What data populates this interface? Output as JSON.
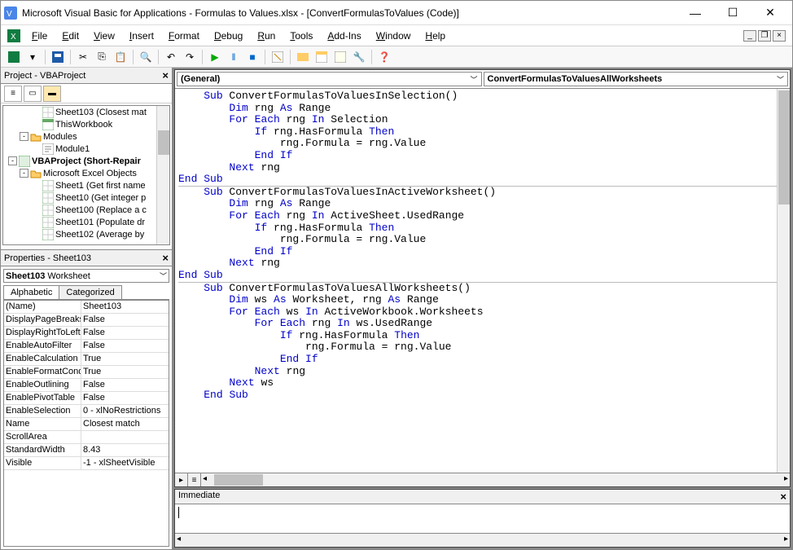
{
  "window": {
    "title": "Microsoft Visual Basic for Applications - Formulas to Values.xlsx - [ConvertFormulasToValues (Code)]"
  },
  "menubar": {
    "items": [
      "File",
      "Edit",
      "View",
      "Insert",
      "Format",
      "Debug",
      "Run",
      "Tools",
      "Add-Ins",
      "Window",
      "Help"
    ]
  },
  "project_panel": {
    "title": "Project - VBAProject",
    "tree": [
      {
        "indent": 48,
        "icon": "sheet",
        "label": "Sheet103 (Closest mat"
      },
      {
        "indent": 48,
        "icon": "wb",
        "label": "ThisWorkbook"
      },
      {
        "indent": 20,
        "toggle": "-",
        "icon": "folder",
        "label": "Modules"
      },
      {
        "indent": 48,
        "icon": "mod",
        "label": "Module1"
      },
      {
        "indent": 6,
        "toggle": "-",
        "icon": "proj",
        "bold": true,
        "label": "VBAProject (Short-Repair"
      },
      {
        "indent": 20,
        "toggle": "-",
        "icon": "folder",
        "label": "Microsoft Excel Objects"
      },
      {
        "indent": 48,
        "icon": "sheet",
        "label": "Sheet1 (Get first name"
      },
      {
        "indent": 48,
        "icon": "sheet",
        "label": "Sheet10 (Get integer p"
      },
      {
        "indent": 48,
        "icon": "sheet",
        "label": "Sheet100 (Replace a c"
      },
      {
        "indent": 48,
        "icon": "sheet",
        "label": "Sheet101 (Populate dr"
      },
      {
        "indent": 48,
        "icon": "sheet",
        "label": "Sheet102 (Average by"
      }
    ]
  },
  "properties_panel": {
    "title": "Properties - Sheet103",
    "selected_object": "Sheet103",
    "selected_type": "Worksheet",
    "tabs": [
      "Alphabetic",
      "Categorized"
    ],
    "active_tab": 0,
    "rows": [
      {
        "name": "(Name)",
        "value": "Sheet103"
      },
      {
        "name": "DisplayPageBreaks",
        "value": "False"
      },
      {
        "name": "DisplayRightToLeft",
        "value": "False"
      },
      {
        "name": "EnableAutoFilter",
        "value": "False"
      },
      {
        "name": "EnableCalculation",
        "value": "True"
      },
      {
        "name": "EnableFormatConditi",
        "value": "True"
      },
      {
        "name": "EnableOutlining",
        "value": "False"
      },
      {
        "name": "EnablePivotTable",
        "value": "False"
      },
      {
        "name": "EnableSelection",
        "value": "0 - xlNoRestrictions"
      },
      {
        "name": "Name",
        "value": "Closest match"
      },
      {
        "name": "ScrollArea",
        "value": ""
      },
      {
        "name": "StandardWidth",
        "value": "8.43"
      },
      {
        "name": "Visible",
        "value": "-1 - xlSheetVisible"
      }
    ]
  },
  "code": {
    "dropdown_left": "(General)",
    "dropdown_right": "ConvertFormulasToValuesAllWorksheets",
    "keyword_color": "#0000c8",
    "text_color": "#000000",
    "lines": [
      {
        "text": "Sub ConvertFormulasToValuesInSelection()",
        "indent": 4,
        "kw": [
          "Sub"
        ]
      },
      {
        "text": "Dim rng As Range",
        "indent": 8,
        "kw": [
          "Dim",
          "As"
        ]
      },
      {
        "text": "For Each rng In Selection",
        "indent": 8,
        "kw": [
          "For",
          "Each",
          "In"
        ]
      },
      {
        "text": "If rng.HasFormula Then",
        "indent": 12,
        "kw": [
          "If",
          "Then"
        ]
      },
      {
        "text": "rng.Formula = rng.Value",
        "indent": 16,
        "kw": []
      },
      {
        "text": "End If",
        "indent": 12,
        "kw": [
          "End",
          "If"
        ]
      },
      {
        "text": "Next rng",
        "indent": 8,
        "kw": [
          "Next"
        ]
      },
      {
        "text": "End Sub",
        "indent": 0,
        "kw": [
          "End",
          "Sub"
        ]
      },
      {
        "hr": true
      },
      {
        "text": "Sub ConvertFormulasToValuesInActiveWorksheet()",
        "indent": 4,
        "kw": [
          "Sub"
        ]
      },
      {
        "text": "Dim rng As Range",
        "indent": 8,
        "kw": [
          "Dim",
          "As"
        ]
      },
      {
        "text": "For Each rng In ActiveSheet.UsedRange",
        "indent": 8,
        "kw": [
          "For",
          "Each",
          "In"
        ]
      },
      {
        "text": "If rng.HasFormula Then",
        "indent": 12,
        "kw": [
          "If",
          "Then"
        ]
      },
      {
        "text": "rng.Formula = rng.Value",
        "indent": 16,
        "kw": []
      },
      {
        "text": "End If",
        "indent": 12,
        "kw": [
          "End",
          "If"
        ]
      },
      {
        "text": "Next rng",
        "indent": 8,
        "kw": [
          "Next"
        ]
      },
      {
        "text": "End Sub",
        "indent": 0,
        "kw": [
          "End",
          "Sub"
        ]
      },
      {
        "hr": true
      },
      {
        "text": "Sub ConvertFormulasToValuesAllWorksheets()",
        "indent": 4,
        "kw": [
          "Sub"
        ]
      },
      {
        "text": "Dim ws As Worksheet, rng As Range",
        "indent": 8,
        "kw": [
          "Dim",
          "As",
          "As"
        ]
      },
      {
        "text": "For Each ws In ActiveWorkbook.Worksheets",
        "indent": 8,
        "kw": [
          "For",
          "Each",
          "In"
        ]
      },
      {
        "text": "For Each rng In ws.UsedRange",
        "indent": 12,
        "kw": [
          "For",
          "Each",
          "In"
        ]
      },
      {
        "text": "If rng.HasFormula Then",
        "indent": 16,
        "kw": [
          "If",
          "Then"
        ]
      },
      {
        "text": "rng.Formula = rng.Value",
        "indent": 20,
        "kw": []
      },
      {
        "text": "End If",
        "indent": 16,
        "kw": [
          "End",
          "If"
        ]
      },
      {
        "text": "Next rng",
        "indent": 12,
        "kw": [
          "Next"
        ]
      },
      {
        "text": "Next ws",
        "indent": 8,
        "kw": [
          "Next"
        ]
      },
      {
        "text": "End Sub",
        "indent": 4,
        "kw": [
          "End",
          "Sub"
        ]
      }
    ]
  },
  "immediate": {
    "title": "Immediate"
  },
  "colors": {
    "window_bg": "#ffffff",
    "panel_bg": "#f0f0f0",
    "border": "#888888",
    "scroll_thumb": "#c0c0c0"
  }
}
